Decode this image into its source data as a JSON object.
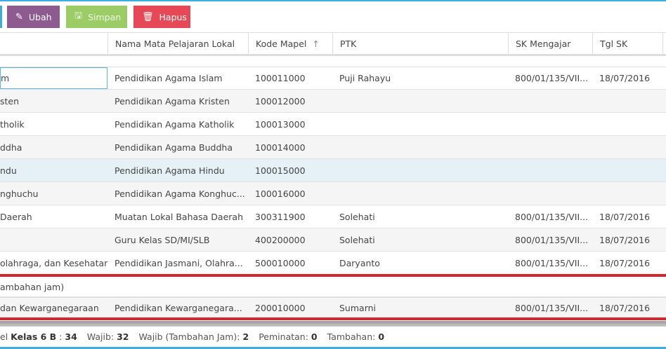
{
  "toolbar": {
    "ubah": "Ubah",
    "simpan": "Simpan",
    "hapus": "Hapus"
  },
  "colors": {
    "accent": "#3bb0e0",
    "ubah": "#8e5b91",
    "simpan": "#9ccc65",
    "hapus": "#e64855",
    "highlight": "#d9232d"
  },
  "columns": [
    "",
    "Nama Mata Pelajaran Lokal",
    "Kode Mapel",
    "PTK",
    "SK Mengajar",
    "Tgl SK"
  ],
  "sort_icon": "arrow-up-icon",
  "rows": [
    {
      "c0": "m",
      "c1": "Pendidikan Agama Islam",
      "c2": "100011000",
      "c3": "Puji Rahayu",
      "c4": "800/01/135/VII...",
      "c5": "18/07/2016"
    },
    {
      "c0": "sten",
      "c1": "Pendidikan Agama Kristen",
      "c2": "100012000",
      "c3": "",
      "c4": "",
      "c5": ""
    },
    {
      "c0": "tholik",
      "c1": "Pendidikan Agama Katholik",
      "c2": "100013000",
      "c3": "",
      "c4": "",
      "c5": ""
    },
    {
      "c0": "ddha",
      "c1": "Pendidikan Agama Buddha",
      "c2": "100014000",
      "c3": "",
      "c4": "",
      "c5": ""
    },
    {
      "c0": "ndu",
      "c1": "Pendidikan Agama Hindu",
      "c2": "100015000",
      "c3": "",
      "c4": "",
      "c5": ""
    },
    {
      "c0": "nghuchu",
      "c1": "Pendidikan Agama Konghuc...",
      "c2": "100016000",
      "c3": "",
      "c4": "",
      "c5": ""
    },
    {
      "c0": "Daerah",
      "c1": "Muatan Lokal Bahasa Daerah",
      "c2": "300311900",
      "c3": "Solehati",
      "c4": "800/01/135/VII...",
      "c5": "18/07/2016"
    },
    {
      "c0": "",
      "c1": "Guru Kelas SD/MI/SLB",
      "c2": "400200000",
      "c3": "Solehati",
      "c4": "800/01/135/VII...",
      "c5": "18/07/2016"
    },
    {
      "c0": "olahraga, dan Kesehatan",
      "c1": "Pendidikan Jasmani, Olahra...",
      "c2": "500010000",
      "c3": "Daryanto",
      "c4": "800/01/135/VII...",
      "c5": "18/07/2016"
    }
  ],
  "group": "ambahan jam)",
  "last_row": {
    "c0": "dan Kewarganegaraan",
    "c1": "Pendidikan Kewarganegara...",
    "c2": "200010000",
    "c3": "Sumarni",
    "c4": "800/01/135/VII...",
    "c5": "18/07/2016"
  },
  "footer": {
    "prefix": "el",
    "kelas_label": "Kelas 6 B",
    "total": "34",
    "wajib_label": "Wajib:",
    "wajib": "32",
    "wajib_tambahan_label": "Wajib (Tambahan Jam):",
    "wajib_tambahan": "2",
    "peminatan_label": "Peminatan:",
    "peminatan": "0",
    "tambahan_label": "Tambahan:",
    "tambahan": "0"
  }
}
